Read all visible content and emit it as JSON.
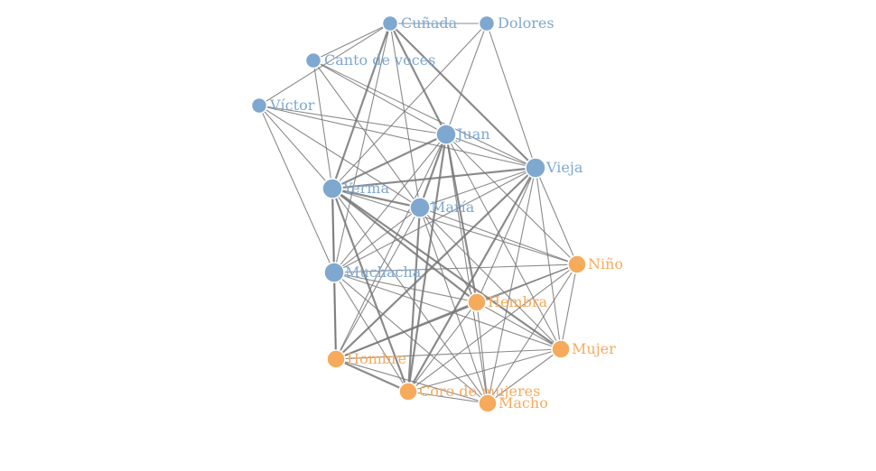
{
  "graph": {
    "colors": {
      "group1": "#7fa8d0",
      "group2": "#f6ab5c",
      "edge": "#777777"
    },
    "nodes": [
      {
        "id": "Cuñada",
        "label": "Cuñada",
        "group": 1,
        "size": "small"
      },
      {
        "id": "Dolores",
        "label": "Dolores",
        "group": 1,
        "size": "small"
      },
      {
        "id": "Canto de voces",
        "label": "Canto de voces",
        "group": 1,
        "size": "small"
      },
      {
        "id": "Víctor",
        "label": "Víctor",
        "group": 1,
        "size": "small"
      },
      {
        "id": "Juan",
        "label": "Juan",
        "group": 1,
        "size": "large"
      },
      {
        "id": "Vieja",
        "label": "Vieja",
        "group": 1,
        "size": "large"
      },
      {
        "id": "Yerma",
        "label": "Yerma",
        "group": 1,
        "size": "large"
      },
      {
        "id": "María",
        "label": "María",
        "group": 1,
        "size": "large"
      },
      {
        "id": "Muchacha",
        "label": "Muchacha",
        "group": 1,
        "size": "large"
      },
      {
        "id": "Niño",
        "label": "Niño",
        "group": 2,
        "size": "medium"
      },
      {
        "id": "Hembra",
        "label": "Hembra",
        "group": 2,
        "size": "medium"
      },
      {
        "id": "Mujer",
        "label": "Mujer",
        "group": 2,
        "size": "medium"
      },
      {
        "id": "Hombre",
        "label": "Hombre",
        "group": 2,
        "size": "medium"
      },
      {
        "id": "Coro de mujeres",
        "label": "Coro de mujeres",
        "group": 2,
        "size": "medium"
      },
      {
        "id": "Macho",
        "label": "Macho",
        "group": 2,
        "size": "medium"
      }
    ],
    "edges": [
      [
        "Cuñada",
        "Dolores",
        1
      ],
      [
        "Cuñada",
        "Canto de voces",
        1
      ],
      [
        "Cuñada",
        "Víctor",
        1
      ],
      [
        "Cuñada",
        "Juan",
        2
      ],
      [
        "Cuñada",
        "Vieja",
        2
      ],
      [
        "Cuñada",
        "Yerma",
        2
      ],
      [
        "Cuñada",
        "María",
        1
      ],
      [
        "Cuñada",
        "Muchacha",
        1
      ],
      [
        "Dolores",
        "Juan",
        1
      ],
      [
        "Dolores",
        "Vieja",
        1
      ],
      [
        "Dolores",
        "Yerma",
        1
      ],
      [
        "Canto de voces",
        "Juan",
        1
      ],
      [
        "Canto de voces",
        "Yerma",
        1
      ],
      [
        "Canto de voces",
        "María",
        1
      ],
      [
        "Canto de voces",
        "Vieja",
        1
      ],
      [
        "Víctor",
        "Juan",
        1
      ],
      [
        "Víctor",
        "Yerma",
        1
      ],
      [
        "Víctor",
        "Vieja",
        1
      ],
      [
        "Víctor",
        "María",
        1
      ],
      [
        "Víctor",
        "Muchacha",
        1
      ],
      [
        "Juan",
        "Yerma",
        2
      ],
      [
        "Juan",
        "María",
        2
      ],
      [
        "Juan",
        "Vieja",
        1
      ],
      [
        "Juan",
        "Muchacha",
        1
      ],
      [
        "Juan",
        "Niño",
        1
      ],
      [
        "Juan",
        "Hembra",
        2
      ],
      [
        "Juan",
        "Mujer",
        1
      ],
      [
        "Juan",
        "Hombre",
        1
      ],
      [
        "Juan",
        "Coro de mujeres",
        2
      ],
      [
        "Juan",
        "Macho",
        1
      ],
      [
        "Vieja",
        "Yerma",
        2
      ],
      [
        "Vieja",
        "María",
        1
      ],
      [
        "Vieja",
        "Muchacha",
        1
      ],
      [
        "Vieja",
        "Niño",
        1
      ],
      [
        "Vieja",
        "Hembra",
        1
      ],
      [
        "Vieja",
        "Mujer",
        1
      ],
      [
        "Vieja",
        "Hombre",
        2
      ],
      [
        "Vieja",
        "Coro de mujeres",
        2
      ],
      [
        "Vieja",
        "Macho",
        1
      ],
      [
        "Yerma",
        "María",
        2
      ],
      [
        "Yerma",
        "Muchacha",
        2
      ],
      [
        "Yerma",
        "Niño",
        1
      ],
      [
        "Yerma",
        "Hembra",
        2
      ],
      [
        "Yerma",
        "Mujer",
        2
      ],
      [
        "Yerma",
        "Hombre",
        1
      ],
      [
        "Yerma",
        "Coro de mujeres",
        2
      ],
      [
        "Yerma",
        "Macho",
        1
      ],
      [
        "María",
        "Muchacha",
        1
      ],
      [
        "María",
        "Niño",
        1
      ],
      [
        "María",
        "Hembra",
        1
      ],
      [
        "María",
        "Mujer",
        1
      ],
      [
        "María",
        "Hombre",
        1
      ],
      [
        "María",
        "Coro de mujeres",
        2
      ],
      [
        "María",
        "Macho",
        1
      ],
      [
        "Muchacha",
        "Niño",
        1
      ],
      [
        "Muchacha",
        "Hembra",
        1
      ],
      [
        "Muchacha",
        "Mujer",
        1
      ],
      [
        "Muchacha",
        "Hombre",
        2
      ],
      [
        "Muchacha",
        "Coro de mujeres",
        1
      ],
      [
        "Muchacha",
        "Macho",
        1
      ],
      [
        "Niño",
        "Hembra",
        1
      ],
      [
        "Niño",
        "Mujer",
        1
      ],
      [
        "Niño",
        "Hombre",
        1
      ],
      [
        "Niño",
        "Coro de mujeres",
        1
      ],
      [
        "Niño",
        "Macho",
        1
      ],
      [
        "Hembra",
        "Mujer",
        1
      ],
      [
        "Hembra",
        "Hombre",
        2
      ],
      [
        "Hembra",
        "Coro de mujeres",
        1
      ],
      [
        "Hembra",
        "Macho",
        1
      ],
      [
        "Mujer",
        "Hombre",
        1
      ],
      [
        "Mujer",
        "Coro de mujeres",
        1
      ],
      [
        "Mujer",
        "Macho",
        1
      ],
      [
        "Hombre",
        "Coro de mujeres",
        2
      ],
      [
        "Hombre",
        "Macho",
        1
      ],
      [
        "Coro de mujeres",
        "Macho",
        1
      ]
    ]
  }
}
